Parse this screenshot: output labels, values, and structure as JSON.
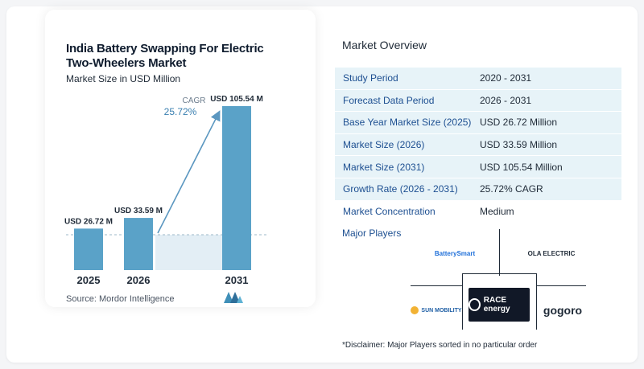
{
  "chart_data": {
    "type": "bar",
    "title": "India Battery Swapping For Electric Two-Wheelers Market",
    "subtitle": "Market Size in USD Million",
    "categories": [
      "2025",
      "2026",
      "2031"
    ],
    "values": [
      26.72,
      33.59,
      105.54
    ],
    "data_labels": [
      "USD 26.72 M",
      "USD 33.59 M",
      "USD 105.54 M"
    ],
    "cagr_label": "CAGR",
    "cagr_value": "25.72%",
    "bar_color": "#5aa2c8",
    "ylim": [
      0,
      110
    ]
  },
  "source": "Source:  Mordor Intelligence",
  "overview": {
    "title": "Market Overview",
    "rows": [
      {
        "label": "Study Period",
        "value": "2020 - 2031"
      },
      {
        "label": "Forecast Data Period",
        "value": "2026 - 2031"
      },
      {
        "label": "Base Year Market Size (2025)",
        "value": "USD 26.72 Million"
      },
      {
        "label": "Market Size (2026)",
        "value": "USD 33.59 Million"
      },
      {
        "label": "Market Size (2031)",
        "value": "USD 105.54 Million"
      },
      {
        "label": "Growth Rate (2026 - 2031)",
        "value": "25.72% CAGR"
      },
      {
        "label": "Market Concentration",
        "value": "Medium"
      }
    ]
  },
  "players": {
    "title": "Major Players",
    "names": [
      "BatterySmart",
      "OLA ELECTRIC",
      "SUN MOBILITY",
      "RACE energy",
      "gogoro"
    ]
  },
  "disclaimer": "*Disclaimer: Major Players sorted in no particular order"
}
